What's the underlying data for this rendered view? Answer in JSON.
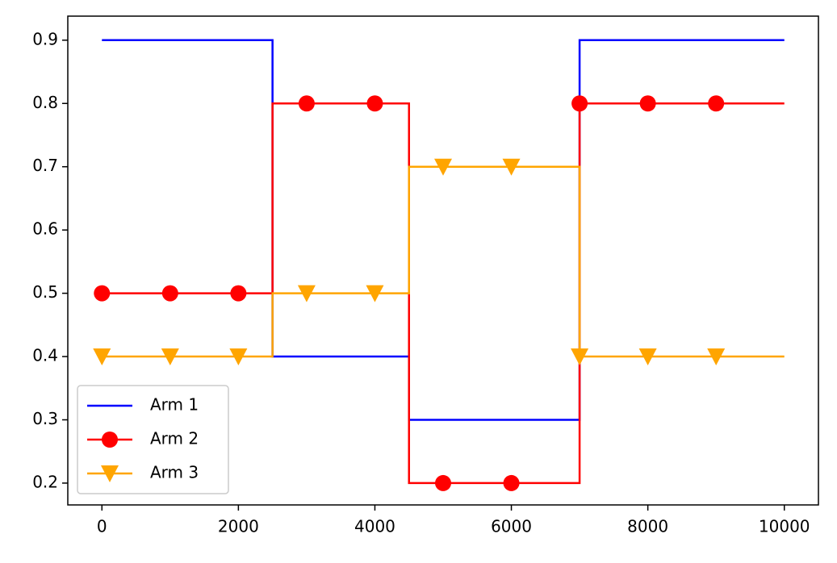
{
  "chart_data": {
    "type": "line",
    "step": "post",
    "x": [
      0,
      1000,
      2000,
      2500,
      3000,
      4000,
      4500,
      5000,
      6000,
      7000,
      8000,
      9000,
      10000
    ],
    "marker_x": [
      0,
      1000,
      2000,
      3000,
      4000,
      5000,
      6000,
      7000,
      8000,
      9000
    ],
    "series": [
      {
        "name": "Arm 1",
        "color": "#0000ff",
        "marker": null,
        "values": [
          0.9,
          0.9,
          0.9,
          0.4,
          0.4,
          0.4,
          0.3,
          0.3,
          0.3,
          0.9,
          0.9,
          0.9,
          0.9
        ]
      },
      {
        "name": "Arm 2",
        "color": "#ff0000",
        "marker": "circle",
        "values": [
          0.5,
          0.5,
          0.5,
          0.8,
          0.8,
          0.8,
          0.2,
          0.2,
          0.2,
          0.8,
          0.8,
          0.8,
          0.8
        ]
      },
      {
        "name": "Arm 3",
        "color": "#ffa500",
        "marker": "triangle-down",
        "values": [
          0.4,
          0.4,
          0.4,
          0.5,
          0.5,
          0.5,
          0.7,
          0.7,
          0.7,
          0.4,
          0.4,
          0.4,
          0.4
        ]
      }
    ],
    "xlim": [
      -500,
      10500
    ],
    "xticks": [
      0,
      2000,
      4000,
      6000,
      8000,
      10000
    ],
    "ylim": [
      0.1655,
      0.938
    ],
    "yticks": [
      0.2,
      0.3,
      0.4,
      0.5,
      0.6,
      0.7,
      0.8,
      0.9
    ],
    "legend": "lower left",
    "grid": false
  }
}
